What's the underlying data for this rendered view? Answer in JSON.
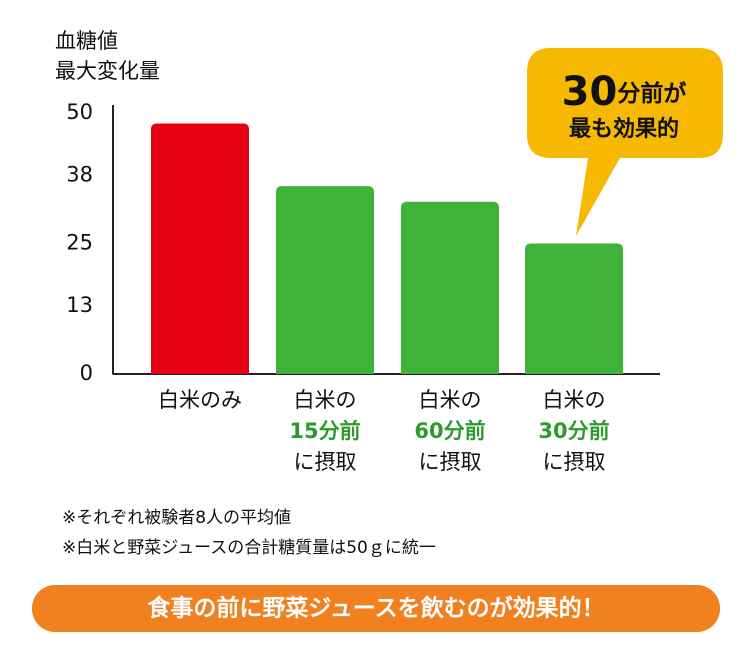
{
  "chart_data": {
    "type": "bar",
    "y_label": [
      "血糖値",
      "最大変化量"
    ],
    "categories": [
      [
        "白米のみ"
      ],
      [
        "白米の",
        "15分前",
        "に摂取"
      ],
      [
        "白米の",
        "60分前",
        "に摂取"
      ],
      [
        "白米の",
        "30分前",
        "に摂取"
      ]
    ],
    "category_highlight_color": "#2e9a2e",
    "values": [
      48,
      36,
      33,
      25
    ],
    "colors": [
      "#e60012",
      "#3fb23a",
      "#3fb23a",
      "#3fb23a"
    ],
    "ylim": [
      0,
      50
    ],
    "yticks": [
      0,
      13,
      25,
      38,
      50
    ],
    "callout": {
      "emphasis": "30",
      "text": "分前が",
      "line2": "最も効果的",
      "color": "#f6b800"
    }
  },
  "notes": [
    "※それぞれ被験者8人の平均値",
    "※白米と野菜ジュースの合計糖質量は50ｇに統一"
  ],
  "banner": {
    "text": "食事の前に野菜ジュースを飲むのが効果的！",
    "color": "#f08020"
  }
}
